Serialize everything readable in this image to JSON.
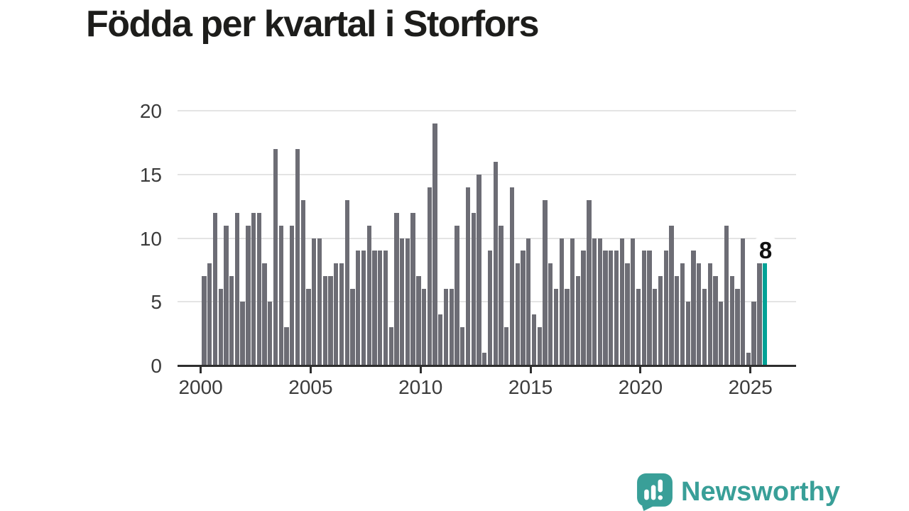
{
  "title": "Födda per kvartal i Storfors",
  "logo": {
    "text": "Newsworthy"
  },
  "colors": {
    "bar": "#6d6d75",
    "highlight": "#00a296",
    "logo_teal": "#399f98",
    "axis": "#2e2e2e",
    "gridline": "#e4e4e4",
    "title_text": "#1d1d1b",
    "tick_text": "#3b3b3b",
    "label_text": "#111111"
  },
  "chart_data": {
    "type": "bar",
    "title": "Födda per kvartal i Storfors",
    "ylabel": "",
    "xlabel": "",
    "ylim": [
      0,
      20
    ],
    "y_ticks": [
      0,
      5,
      10,
      15,
      20
    ],
    "x_tick_labels": [
      "2000",
      "2005",
      "2010",
      "2015",
      "2020",
      "2025"
    ],
    "x_start": "2000Q1",
    "x_end": "2025Q3",
    "grid": "horizontal",
    "legend": "none",
    "highlight": {
      "position": "last",
      "value": 8,
      "label": "8"
    },
    "years": [
      {
        "year": "2000",
        "values": [
          7,
          8,
          12,
          6
        ]
      },
      {
        "year": "2001",
        "values": [
          11,
          7,
          12,
          5
        ]
      },
      {
        "year": "2002",
        "values": [
          11,
          12,
          12,
          8
        ]
      },
      {
        "year": "2003",
        "values": [
          5,
          17,
          11,
          3
        ]
      },
      {
        "year": "2004",
        "values": [
          11,
          17,
          13,
          6
        ]
      },
      {
        "year": "2005",
        "values": [
          10,
          10,
          7,
          7
        ]
      },
      {
        "year": "2006",
        "values": [
          8,
          8,
          13,
          6
        ]
      },
      {
        "year": "2007",
        "values": [
          9,
          9,
          11,
          9
        ]
      },
      {
        "year": "2008",
        "values": [
          9,
          9,
          3,
          12
        ]
      },
      {
        "year": "2009",
        "values": [
          10,
          10,
          12,
          7
        ]
      },
      {
        "year": "2010",
        "values": [
          6,
          14,
          19,
          4
        ]
      },
      {
        "year": "2011",
        "values": [
          6,
          6,
          11,
          3
        ]
      },
      {
        "year": "2012",
        "values": [
          14,
          12,
          15,
          1
        ]
      },
      {
        "year": "2013",
        "values": [
          9,
          16,
          11,
          3
        ]
      },
      {
        "year": "2014",
        "values": [
          14,
          8,
          9,
          10
        ]
      },
      {
        "year": "2015",
        "values": [
          4,
          3,
          13,
          8
        ]
      },
      {
        "year": "2016",
        "values": [
          6,
          10,
          6,
          10
        ]
      },
      {
        "year": "2017",
        "values": [
          7,
          9,
          13,
          10
        ]
      },
      {
        "year": "2018",
        "values": [
          10,
          9,
          9,
          9
        ]
      },
      {
        "year": "2019",
        "values": [
          10,
          8,
          10,
          6
        ]
      },
      {
        "year": "2020",
        "values": [
          9,
          9,
          6,
          7
        ]
      },
      {
        "year": "2021",
        "values": [
          9,
          11,
          7,
          8
        ]
      },
      {
        "year": "2022",
        "values": [
          5,
          9,
          8,
          6
        ]
      },
      {
        "year": "2023",
        "values": [
          8,
          7,
          5,
          11
        ]
      },
      {
        "year": "2024",
        "values": [
          7,
          6,
          10,
          1
        ]
      },
      {
        "year": "2025",
        "values": [
          5,
          9,
          8
        ]
      }
    ]
  }
}
